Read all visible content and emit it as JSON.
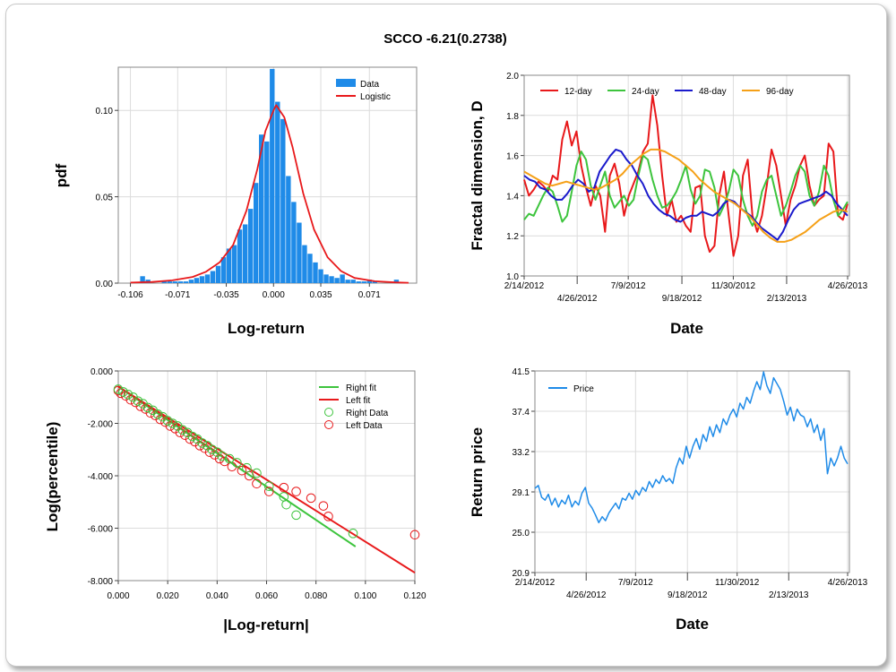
{
  "title": "SCCO -6.21(0.2738)",
  "chart_data": [
    {
      "type": "bar",
      "panel": "histogram",
      "xlabel": "Log-return",
      "ylabel": "pdf",
      "xticks": [
        "-0.106",
        "-0.071",
        "-0.035",
        "0.000",
        "0.035",
        "0.071"
      ],
      "yticks": [
        "0.00",
        "0.05",
        "0.10"
      ],
      "xlim": [
        -0.115,
        0.106
      ],
      "ylim": [
        0,
        0.125
      ],
      "legend": [
        "Data",
        "Logistic"
      ],
      "legend_position": "top-right",
      "grid": true,
      "series": [
        {
          "name": "Data",
          "color": "#1f8be8",
          "x": [
            -0.097,
            -0.093,
            -0.081,
            -0.077,
            -0.073,
            -0.069,
            -0.065,
            -0.061,
            -0.057,
            -0.053,
            -0.049,
            -0.045,
            -0.041,
            -0.037,
            -0.033,
            -0.029,
            -0.025,
            -0.021,
            -0.017,
            -0.013,
            -0.009,
            -0.005,
            -0.001,
            0.003,
            0.007,
            0.011,
            0.015,
            0.019,
            0.023,
            0.027,
            0.031,
            0.035,
            0.039,
            0.043,
            0.047,
            0.051,
            0.055,
            0.059,
            0.063,
            0.067,
            0.071,
            0.075,
            0.091
          ],
          "values": [
            0.004,
            0.002,
            0.001,
            0.001,
            0.001,
            0.001,
            0.001,
            0.002,
            0.003,
            0.004,
            0.005,
            0.007,
            0.01,
            0.015,
            0.02,
            0.022,
            0.031,
            0.034,
            0.043,
            0.058,
            0.086,
            0.082,
            0.124,
            0.105,
            0.095,
            0.062,
            0.047,
            0.035,
            0.022,
            0.017,
            0.012,
            0.008,
            0.005,
            0.004,
            0.003,
            0.005,
            0.002,
            0.002,
            0.001,
            0.001,
            0.002,
            0.001,
            0.002
          ]
        },
        {
          "name": "Logistic",
          "color": "#e8191b",
          "x": [
            -0.106,
            -0.09,
            -0.075,
            -0.06,
            -0.05,
            -0.04,
            -0.03,
            -0.02,
            -0.012,
            -0.006,
            0.0,
            0.002,
            0.008,
            0.014,
            0.022,
            0.03,
            0.04,
            0.05,
            0.06,
            0.075,
            0.09,
            0.1
          ],
          "values": [
            0.0003,
            0.0007,
            0.0016,
            0.0036,
            0.0066,
            0.012,
            0.022,
            0.042,
            0.066,
            0.088,
            0.1,
            0.103,
            0.096,
            0.079,
            0.052,
            0.031,
            0.015,
            0.007,
            0.003,
            0.0011,
            0.0004,
            0.0002
          ]
        }
      ]
    },
    {
      "type": "line",
      "panel": "fractal",
      "xlabel": "Date",
      "ylabel": "Fractal dimension, D",
      "xticks_top": [
        "2/14/2012",
        "7/9/2012",
        "11/30/2012",
        "4/26/2013"
      ],
      "xticks_bottom": [
        "4/26/2012",
        "9/18/2012",
        "2/13/2013"
      ],
      "yticks": [
        "1.0",
        "1.2",
        "1.4",
        "1.6",
        "1.8",
        "2.0"
      ],
      "ylim": [
        1.0,
        2.0
      ],
      "legend_position": "top",
      "grid": true,
      "series": [
        {
          "name": "12-day",
          "color": "#e8191b",
          "values": [
            1.48,
            1.4,
            1.43,
            1.47,
            1.45,
            1.42,
            1.5,
            1.48,
            1.68,
            1.77,
            1.65,
            1.72,
            1.55,
            1.44,
            1.35,
            1.45,
            1.4,
            1.22,
            1.5,
            1.56,
            1.46,
            1.3,
            1.4,
            1.46,
            1.52,
            1.62,
            1.66,
            1.9,
            1.75,
            1.5,
            1.3,
            1.38,
            1.27,
            1.3,
            1.25,
            1.22,
            1.44,
            1.45,
            1.2,
            1.12,
            1.15,
            1.4,
            1.52,
            1.3,
            1.1,
            1.2,
            1.5,
            1.58,
            1.3,
            1.22,
            1.3,
            1.45,
            1.63,
            1.55,
            1.4,
            1.25,
            1.38,
            1.45,
            1.55,
            1.6,
            1.45,
            1.35,
            1.38,
            1.4,
            1.66,
            1.62,
            1.3,
            1.28,
            1.36
          ]
        },
        {
          "name": "24-day",
          "color": "#3dc43d",
          "values": [
            1.28,
            1.31,
            1.3,
            1.35,
            1.4,
            1.44,
            1.42,
            1.35,
            1.27,
            1.3,
            1.42,
            1.55,
            1.62,
            1.58,
            1.45,
            1.38,
            1.45,
            1.52,
            1.4,
            1.34,
            1.37,
            1.4,
            1.35,
            1.38,
            1.5,
            1.6,
            1.58,
            1.48,
            1.4,
            1.34,
            1.35,
            1.38,
            1.42,
            1.48,
            1.55,
            1.43,
            1.36,
            1.4,
            1.53,
            1.52,
            1.44,
            1.3,
            1.35,
            1.42,
            1.53,
            1.5,
            1.38,
            1.3,
            1.25,
            1.3,
            1.42,
            1.48,
            1.5,
            1.4,
            1.3,
            1.35,
            1.42,
            1.5,
            1.55,
            1.52,
            1.4,
            1.35,
            1.42,
            1.55,
            1.5,
            1.38,
            1.3,
            1.33,
            1.37
          ]
        },
        {
          "name": "48-day",
          "color": "#1a1acc",
          "values": [
            1.5,
            1.48,
            1.47,
            1.44,
            1.43,
            1.4,
            1.38,
            1.38,
            1.41,
            1.45,
            1.48,
            1.46,
            1.42,
            1.44,
            1.52,
            1.56,
            1.6,
            1.63,
            1.62,
            1.58,
            1.55,
            1.5,
            1.46,
            1.4,
            1.36,
            1.33,
            1.31,
            1.3,
            1.28,
            1.27,
            1.29,
            1.3,
            1.3,
            1.32,
            1.31,
            1.3,
            1.32,
            1.36,
            1.38,
            1.37,
            1.34,
            1.32,
            1.3,
            1.27,
            1.24,
            1.22,
            1.2,
            1.18,
            1.22,
            1.28,
            1.33,
            1.36,
            1.37,
            1.38,
            1.39,
            1.4,
            1.42,
            1.4,
            1.36,
            1.33,
            1.3
          ]
        },
        {
          "name": "96-day",
          "color": "#f5a017",
          "values": [
            1.52,
            1.5,
            1.48,
            1.46,
            1.45,
            1.46,
            1.47,
            1.46,
            1.45,
            1.44,
            1.43,
            1.44,
            1.46,
            1.48,
            1.51,
            1.55,
            1.58,
            1.61,
            1.63,
            1.63,
            1.62,
            1.6,
            1.58,
            1.55,
            1.52,
            1.48,
            1.45,
            1.42,
            1.4,
            1.38,
            1.36,
            1.33,
            1.3,
            1.26,
            1.22,
            1.19,
            1.17,
            1.17,
            1.18,
            1.2,
            1.22,
            1.25,
            1.28,
            1.3,
            1.32,
            1.33,
            1.32
          ]
        }
      ]
    },
    {
      "type": "scatter",
      "panel": "tail",
      "xlabel": "|Log-return|",
      "ylabel": "Log(percentile)",
      "xticks": [
        "0.000",
        "0.020",
        "0.040",
        "0.060",
        "0.080",
        "0.100",
        "0.120"
      ],
      "yticks": [
        "0.000",
        "-2.000",
        "-4.000",
        "-6.000",
        "-8.000"
      ],
      "xlim": [
        0,
        0.12
      ],
      "ylim": [
        -8,
        0
      ],
      "legend_position": "top-right",
      "grid": true,
      "series": [
        {
          "name": "Right fit",
          "color": "#3dc43d",
          "kind": "line",
          "x": [
            0.0,
            0.096
          ],
          "y": [
            -0.6,
            -6.7
          ]
        },
        {
          "name": "Left fit",
          "color": "#e8191b",
          "kind": "line",
          "x": [
            0.0,
            0.12
          ],
          "y": [
            -0.6,
            -7.7
          ]
        },
        {
          "name": "Right Data",
          "color": "#3dc43d",
          "kind": "marker",
          "x": [
            0.0,
            0.002,
            0.004,
            0.006,
            0.008,
            0.01,
            0.012,
            0.014,
            0.016,
            0.018,
            0.02,
            0.022,
            0.024,
            0.026,
            0.028,
            0.03,
            0.032,
            0.034,
            0.036,
            0.038,
            0.04,
            0.042,
            0.045,
            0.048,
            0.052,
            0.056,
            0.061,
            0.067,
            0.068,
            0.072,
            0.095
          ],
          "y": [
            -0.7,
            -0.8,
            -0.9,
            -1.0,
            -1.15,
            -1.25,
            -1.4,
            -1.5,
            -1.65,
            -1.75,
            -1.9,
            -2.0,
            -2.1,
            -2.25,
            -2.35,
            -2.5,
            -2.6,
            -2.75,
            -2.85,
            -3.0,
            -3.1,
            -3.25,
            -3.35,
            -3.5,
            -3.7,
            -3.9,
            -4.4,
            -4.8,
            -5.1,
            -5.5,
            -6.2
          ]
        },
        {
          "name": "Left Data",
          "color": "#e8191b",
          "kind": "marker",
          "x": [
            0.0,
            0.001,
            0.003,
            0.005,
            0.007,
            0.009,
            0.011,
            0.013,
            0.015,
            0.017,
            0.019,
            0.021,
            0.023,
            0.025,
            0.027,
            0.029,
            0.031,
            0.033,
            0.035,
            0.037,
            0.039,
            0.041,
            0.043,
            0.046,
            0.05,
            0.053,
            0.056,
            0.061,
            0.067,
            0.072,
            0.078,
            0.083,
            0.085,
            0.12
          ],
          "y": [
            -0.75,
            -0.85,
            -0.95,
            -1.1,
            -1.2,
            -1.35,
            -1.45,
            -1.6,
            -1.7,
            -1.85,
            -1.95,
            -2.1,
            -2.2,
            -2.35,
            -2.45,
            -2.6,
            -2.7,
            -2.85,
            -2.95,
            -3.1,
            -3.2,
            -3.35,
            -3.45,
            -3.65,
            -3.8,
            -4.0,
            -4.3,
            -4.6,
            -4.45,
            -4.6,
            -4.85,
            -5.15,
            -5.55,
            -6.25
          ]
        }
      ]
    },
    {
      "type": "line",
      "panel": "price",
      "xlabel": "Date",
      "ylabel": "Return price",
      "xticks_top": [
        "2/14/2012",
        "7/9/2012",
        "11/30/2012",
        "4/26/2013"
      ],
      "xticks_bottom": [
        "4/26/2012",
        "9/18/2012",
        "2/13/2013"
      ],
      "yticks": [
        "20.9",
        "25.0",
        "29.1",
        "33.2",
        "37.4",
        "41.5"
      ],
      "ylim": [
        20.9,
        41.5
      ],
      "legend_position": "top-left",
      "grid": true,
      "series": [
        {
          "name": "Price",
          "color": "#1f8be8",
          "values": [
            29.5,
            29.8,
            28.6,
            28.3,
            28.9,
            27.8,
            28.5,
            27.6,
            28.3,
            27.9,
            28.8,
            27.6,
            28.2,
            27.8,
            29.0,
            29.6,
            28.0,
            27.5,
            26.8,
            26.0,
            26.6,
            26.2,
            27.0,
            27.5,
            28.0,
            27.4,
            28.5,
            28.3,
            29.0,
            28.4,
            29.3,
            28.8,
            29.6,
            29.2,
            30.2,
            29.6,
            30.4,
            30.0,
            30.8,
            30.2,
            30.5,
            30.0,
            31.6,
            32.6,
            32.0,
            33.8,
            32.6,
            33.8,
            34.6,
            33.5,
            35.0,
            34.3,
            35.8,
            34.8,
            36.0,
            35.2,
            36.6,
            36.0,
            37.0,
            37.6,
            36.8,
            38.2,
            37.6,
            38.8,
            38.2,
            39.4,
            40.4,
            39.6,
            41.4,
            40.0,
            39.2,
            40.8,
            40.2,
            39.6,
            38.4,
            37.0,
            37.8,
            36.4,
            37.6,
            37.0,
            36.8,
            35.8,
            36.6,
            35.2,
            36.0,
            34.4,
            35.6,
            31.0,
            32.6,
            31.8,
            32.6,
            33.8,
            32.6,
            32.0
          ]
        }
      ]
    }
  ]
}
